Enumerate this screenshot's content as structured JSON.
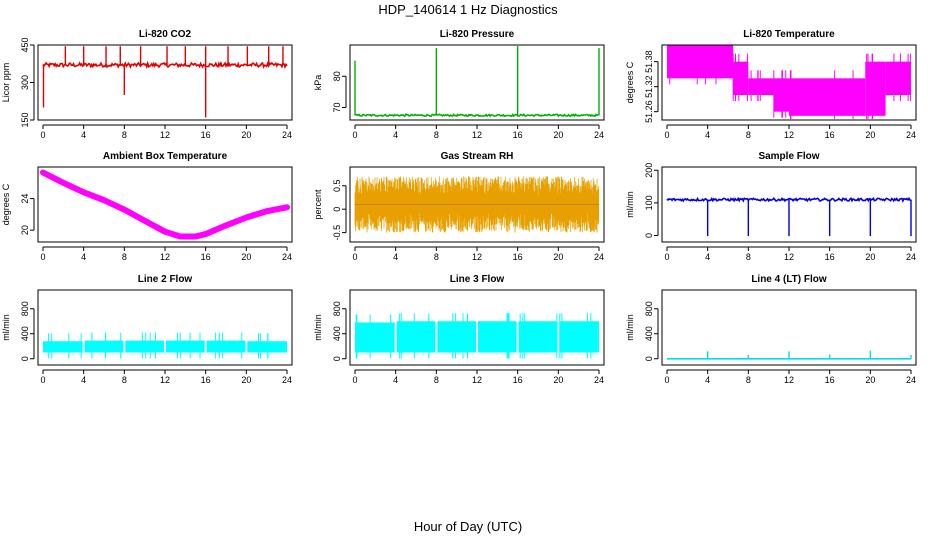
{
  "figure": {
    "title": "HDP_140614  1 Hz Diagnostics",
    "xlabel": "Hour of Day (UTC)"
  },
  "chart_data": [
    {
      "type": "line",
      "title": "Li-820 CO2",
      "ylabel": "Licor ppm",
      "color": "#e00000",
      "style": "spiky",
      "xlim": [
        0,
        24
      ],
      "ylim": [
        150,
        450
      ],
      "x_ticks": [
        0,
        4,
        8,
        12,
        16,
        20,
        24
      ],
      "y_ticks": [
        150,
        300,
        450
      ],
      "baseline": 370,
      "noise": 8,
      "spikes": [
        {
          "x": 0.05,
          "y": 200
        },
        {
          "x": 2.2,
          "y": 445
        },
        {
          "x": 4.0,
          "y": 445
        },
        {
          "x": 6.2,
          "y": 445
        },
        {
          "x": 7.6,
          "y": 445
        },
        {
          "x": 8.0,
          "y": 250
        },
        {
          "x": 9.6,
          "y": 445
        },
        {
          "x": 12.2,
          "y": 445
        },
        {
          "x": 14.0,
          "y": 445
        },
        {
          "x": 16.0,
          "y": 160
        },
        {
          "x": 16.0,
          "y": 445
        },
        {
          "x": 18.2,
          "y": 445
        },
        {
          "x": 20.1,
          "y": 445
        },
        {
          "x": 22.2,
          "y": 445
        },
        {
          "x": 23.6,
          "y": 445
        }
      ]
    },
    {
      "type": "line",
      "title": "Li-820 Pressure",
      "ylabel": "kPa",
      "color": "#00b000",
      "style": "spiky",
      "xlim": [
        0,
        24
      ],
      "ylim": [
        66,
        90
      ],
      "x_ticks": [
        0,
        4,
        8,
        12,
        16,
        20,
        24
      ],
      "y_ticks": [
        70,
        80
      ],
      "baseline": 67.5,
      "noise": 0.3,
      "spikes": [
        {
          "x": 0.0,
          "y": 85
        },
        {
          "x": 8.0,
          "y": 89
        },
        {
          "x": 16.0,
          "y": 90
        },
        {
          "x": 24.0,
          "y": 89
        }
      ]
    },
    {
      "type": "band",
      "title": "Li-820 Temperature",
      "ylabel": "degrees C",
      "color": "#ff00ff",
      "xlim": [
        0,
        24
      ],
      "ylim": [
        51.24,
        51.42
      ],
      "x_ticks": [
        0,
        4,
        8,
        12,
        16,
        20,
        24
      ],
      "y_ticks": [
        51.26,
        51.32,
        51.38
      ],
      "segments": [
        {
          "x0": 0.0,
          "x1": 6.5,
          "low": 51.34,
          "high": 51.42
        },
        {
          "x0": 6.5,
          "x1": 8.0,
          "low": 51.3,
          "high": 51.38
        },
        {
          "x0": 8.0,
          "x1": 10.5,
          "low": 51.3,
          "high": 51.34
        },
        {
          "x0": 10.5,
          "x1": 12.0,
          "low": 51.26,
          "high": 51.34
        },
        {
          "x0": 12.0,
          "x1": 19.5,
          "low": 51.25,
          "high": 51.34
        },
        {
          "x0": 19.5,
          "x1": 21.5,
          "low": 51.25,
          "high": 51.38
        },
        {
          "x0": 21.5,
          "x1": 24.0,
          "low": 51.3,
          "high": 51.38
        }
      ]
    },
    {
      "type": "line",
      "title": "Ambient Box Temperature",
      "ylabel": "degrees C",
      "color": "#ff00ff",
      "style": "thick",
      "xlim": [
        0,
        24
      ],
      "ylim": [
        18.5,
        28
      ],
      "x_ticks": [
        0,
        4,
        8,
        12,
        16,
        20,
        24
      ],
      "y_ticks": [
        20,
        24
      ],
      "points": [
        {
          "x": 0,
          "y": 27.3
        },
        {
          "x": 2,
          "y": 26.0
        },
        {
          "x": 4,
          "y": 24.8
        },
        {
          "x": 6,
          "y": 23.8
        },
        {
          "x": 8,
          "y": 22.6
        },
        {
          "x": 10,
          "y": 21.2
        },
        {
          "x": 12,
          "y": 19.8
        },
        {
          "x": 13.5,
          "y": 19.2
        },
        {
          "x": 15,
          "y": 19.2
        },
        {
          "x": 16,
          "y": 19.5
        },
        {
          "x": 18,
          "y": 20.6
        },
        {
          "x": 20,
          "y": 21.6
        },
        {
          "x": 22,
          "y": 22.4
        },
        {
          "x": 24,
          "y": 22.9
        }
      ]
    },
    {
      "type": "band",
      "title": "Gas Stream RH",
      "ylabel": "percent",
      "color": "#e8a000",
      "style": "noisy",
      "xlim": [
        0,
        24
      ],
      "ylim": [
        -0.7,
        0.9
      ],
      "x_ticks": [
        0,
        4,
        8,
        12,
        16,
        20,
        24
      ],
      "y_ticks": [
        -0.5,
        0.0,
        0.5
      ],
      "segments": [
        {
          "x0": 0.0,
          "x1": 24.0,
          "low": -0.5,
          "high": 0.7
        }
      ]
    },
    {
      "type": "line",
      "title": "Sample Flow",
      "ylabel": "ml/min",
      "color": "#0000e0",
      "style": "spiky",
      "xlim": [
        0,
        24
      ],
      "ylim": [
        -20,
        210
      ],
      "x_ticks": [
        0,
        4,
        8,
        12,
        16,
        20,
        24
      ],
      "y_ticks": [
        0,
        100,
        200
      ],
      "baseline": 110,
      "noise": 4,
      "spikes": [
        {
          "x": 4.0,
          "y": -2
        },
        {
          "x": 8.0,
          "y": -2
        },
        {
          "x": 12.0,
          "y": -2
        },
        {
          "x": 16.0,
          "y": -2
        },
        {
          "x": 20.0,
          "y": -2
        },
        {
          "x": 24.0,
          "y": -2
        }
      ]
    },
    {
      "type": "band",
      "title": "Line 2 Flow",
      "ylabel": "ml/min",
      "color": "#00ffff",
      "xlim": [
        0,
        24
      ],
      "ylim": [
        -100,
        1100
      ],
      "x_ticks": [
        0,
        4,
        8,
        12,
        16,
        20,
        24
      ],
      "y_ticks": [
        0,
        400,
        800
      ],
      "segments": [
        {
          "x0": 0.0,
          "x1": 3.9,
          "low": 100,
          "high": 280
        },
        {
          "x0": 4.1,
          "x1": 7.9,
          "low": 100,
          "high": 290
        },
        {
          "x0": 8.1,
          "x1": 11.9,
          "low": 100,
          "high": 290
        },
        {
          "x0": 12.1,
          "x1": 15.9,
          "low": 100,
          "high": 290
        },
        {
          "x0": 16.1,
          "x1": 19.9,
          "low": 100,
          "high": 290
        },
        {
          "x0": 20.1,
          "x1": 24.0,
          "low": 100,
          "high": 280
        }
      ]
    },
    {
      "type": "band",
      "title": "Line 3 Flow",
      "ylabel": "ml/min",
      "color": "#00ffff",
      "xlim": [
        0,
        24
      ],
      "ylim": [
        -100,
        1100
      ],
      "x_ticks": [
        0,
        4,
        8,
        12,
        16,
        20,
        24
      ],
      "y_ticks": [
        0,
        400,
        800
      ],
      "segments": [
        {
          "x0": 0.0,
          "x1": 3.9,
          "low": 100,
          "high": 580
        },
        {
          "x0": 4.1,
          "x1": 7.9,
          "low": 100,
          "high": 600
        },
        {
          "x0": 8.1,
          "x1": 11.9,
          "low": 100,
          "high": 600
        },
        {
          "x0": 12.1,
          "x1": 15.9,
          "low": 100,
          "high": 600
        },
        {
          "x0": 16.1,
          "x1": 19.9,
          "low": 100,
          "high": 600
        },
        {
          "x0": 20.1,
          "x1": 24.0,
          "low": 100,
          "high": 600
        }
      ]
    },
    {
      "type": "line",
      "title": "Line 4 (LT) Flow",
      "ylabel": "ml/min",
      "color": "#00e0e0",
      "style": "spiky",
      "xlim": [
        0,
        24
      ],
      "ylim": [
        -100,
        1100
      ],
      "x_ticks": [
        0,
        4,
        8,
        12,
        16,
        20,
        24
      ],
      "y_ticks": [
        0,
        400,
        800
      ],
      "baseline": 0,
      "noise": 0,
      "spikes": [
        {
          "x": 4.0,
          "y": 120
        },
        {
          "x": 8.0,
          "y": 60
        },
        {
          "x": 12.0,
          "y": 120
        },
        {
          "x": 16.0,
          "y": 70
        },
        {
          "x": 20.0,
          "y": 130
        },
        {
          "x": 24.0,
          "y": 60
        }
      ]
    }
  ]
}
